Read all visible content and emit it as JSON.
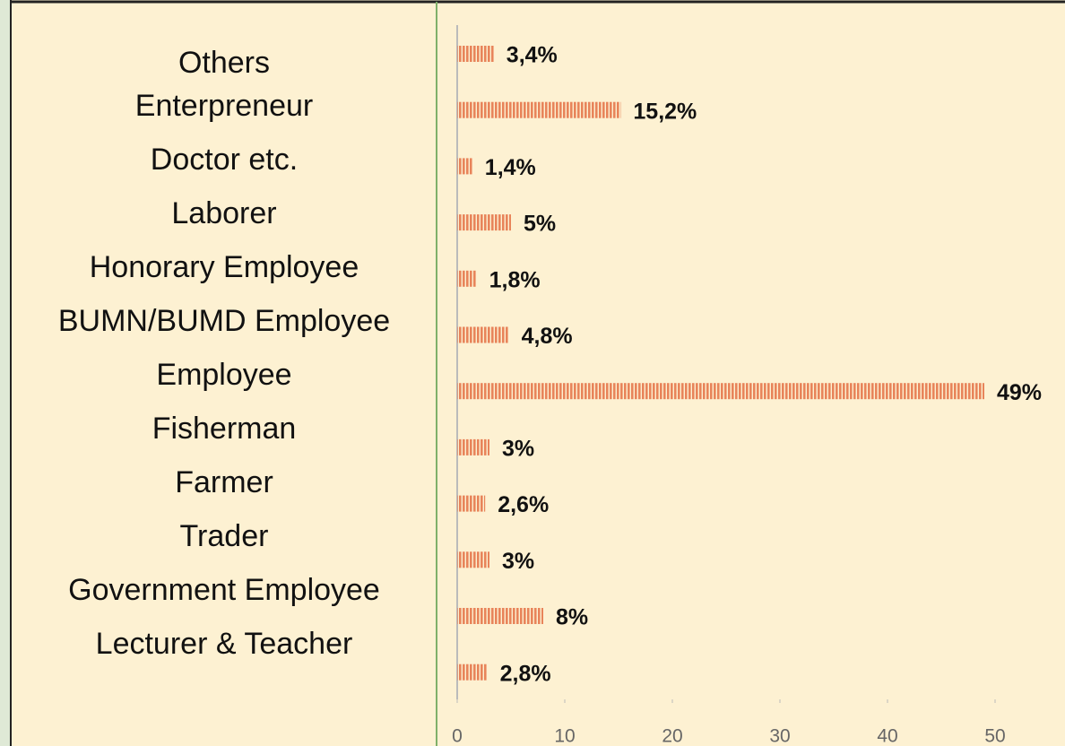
{
  "chart_data": {
    "type": "bar",
    "orientation": "horizontal",
    "categories": [
      "Others",
      "Enterpreneur",
      "Doctor etc.",
      "Laborer",
      "Honorary Employee",
      "BUMN/BUMD Employee",
      "Employee",
      "Fisherman",
      "Farmer",
      "Trader",
      "Government Employee",
      "Lecturer & Teacher"
    ],
    "values": [
      3.4,
      15.2,
      1.4,
      5,
      1.8,
      4.8,
      49,
      3,
      2.6,
      3,
      8,
      2.8
    ],
    "value_labels": [
      "3,4%",
      "15,2%",
      "1,4%",
      "5%",
      "1,8%",
      "4,8%",
      "49%",
      "3%",
      "2,6%",
      "3%",
      "8%",
      "2,8%"
    ],
    "color": "#e8845a",
    "xlim": [
      0,
      56.5
    ],
    "xticks": [
      0,
      10,
      20,
      30,
      40,
      50
    ]
  }
}
